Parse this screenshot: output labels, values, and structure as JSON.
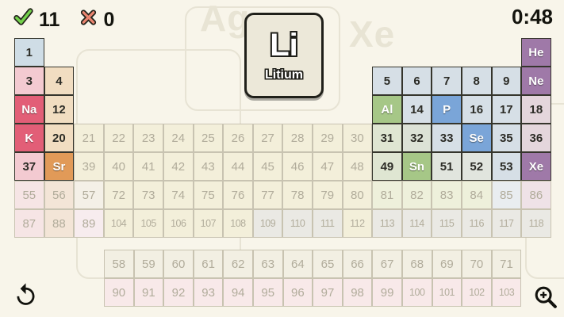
{
  "hud": {
    "correct_count": "11",
    "wrong_count": "0",
    "timer": "0:48",
    "correct_icon": "checkmark",
    "wrong_icon": "cross-x"
  },
  "card": {
    "symbol": "Li",
    "name": "Litium"
  },
  "watermarks": [
    "Ag",
    "Xe"
  ],
  "controls": {
    "undo_icon": "undo-arrow",
    "zoom_icon": "magnifier-plus"
  },
  "colors": {
    "background": "#f8f5ea",
    "active_border": "#35352c",
    "faded_border": "#c8c3b1",
    "categories": {
      "h": "#cfdde6",
      "pink": "#f3cad1",
      "tan": "#f1ddc1",
      "rose": "#e25e77",
      "orange": "#e19a58",
      "lblue": "#d6dfe6",
      "lgreen": "#dfe6d2",
      "lgreen2": "#dce2d6",
      "mist": "#e1e5de",
      "green": "#a6c787",
      "blue": "#7aa5d8",
      "purple": "#9f79a8",
      "mauve": "#e4d6dc",
      "f-cream": "#f3efda",
      "f-pink": "#f6e5e5",
      "f-tan": "#f3e5d7",
      "f-white": "#f4f0e7",
      "f-pinkw": "#f7ecee",
      "f-gray": "#eae9e4",
      "f-blue": "#e9edf0",
      "f-mauve": "#efe2e7",
      "f-green": "#eef0db",
      "f-lan": "#f2efe3",
      "f-act": "#f8e9e9"
    }
  },
  "table": {
    "rows": [
      {
        "period": 1,
        "cells": [
          {
            "c": 1,
            "t": "1",
            "k": "h"
          },
          {
            "c": 18,
            "t": "He",
            "k": "purple"
          }
        ]
      },
      {
        "period": 2,
        "cells": [
          {
            "c": 1,
            "t": "3",
            "k": "pink"
          },
          {
            "c": 2,
            "t": "4",
            "k": "tan"
          },
          {
            "c": 13,
            "t": "5",
            "k": "lblue"
          },
          {
            "c": 14,
            "t": "6",
            "k": "lblue"
          },
          {
            "c": 15,
            "t": "7",
            "k": "lblue"
          },
          {
            "c": 16,
            "t": "8",
            "k": "lblue"
          },
          {
            "c": 17,
            "t": "9",
            "k": "lblue"
          },
          {
            "c": 18,
            "t": "Ne",
            "k": "purple"
          }
        ]
      },
      {
        "period": 3,
        "cells": [
          {
            "c": 1,
            "t": "Na",
            "k": "rose"
          },
          {
            "c": 2,
            "t": "12",
            "k": "tan"
          },
          {
            "c": 13,
            "t": "Al",
            "k": "green"
          },
          {
            "c": 14,
            "t": "14",
            "k": "lblue"
          },
          {
            "c": 15,
            "t": "P",
            "k": "blue"
          },
          {
            "c": 16,
            "t": "16",
            "k": "lblue"
          },
          {
            "c": 17,
            "t": "17",
            "k": "lblue"
          },
          {
            "c": 18,
            "t": "18",
            "k": "mauve"
          }
        ]
      },
      {
        "period": 4,
        "cells": [
          {
            "c": 1,
            "t": "K",
            "k": "rose"
          },
          {
            "c": 2,
            "t": "20",
            "k": "tan"
          },
          {
            "c": 3,
            "t": "21",
            "k": "f-cream"
          },
          {
            "c": 4,
            "t": "22",
            "k": "f-cream"
          },
          {
            "c": 5,
            "t": "23",
            "k": "f-cream"
          },
          {
            "c": 6,
            "t": "24",
            "k": "f-cream"
          },
          {
            "c": 7,
            "t": "25",
            "k": "f-cream"
          },
          {
            "c": 8,
            "t": "26",
            "k": "f-cream"
          },
          {
            "c": 9,
            "t": "27",
            "k": "f-cream"
          },
          {
            "c": 10,
            "t": "28",
            "k": "f-cream"
          },
          {
            "c": 11,
            "t": "29",
            "k": "f-cream"
          },
          {
            "c": 12,
            "t": "30",
            "k": "f-cream"
          },
          {
            "c": 13,
            "t": "31",
            "k": "lgreen"
          },
          {
            "c": 14,
            "t": "32",
            "k": "lgreen2"
          },
          {
            "c": 15,
            "t": "33",
            "k": "lblue"
          },
          {
            "c": 16,
            "t": "Se",
            "k": "blue"
          },
          {
            "c": 17,
            "t": "35",
            "k": "lblue"
          },
          {
            "c": 18,
            "t": "36",
            "k": "mauve"
          }
        ]
      },
      {
        "period": 5,
        "cells": [
          {
            "c": 1,
            "t": "37",
            "k": "pink"
          },
          {
            "c": 2,
            "t": "Sr",
            "k": "orange"
          },
          {
            "c": 3,
            "t": "39",
            "k": "f-cream"
          },
          {
            "c": 4,
            "t": "40",
            "k": "f-cream"
          },
          {
            "c": 5,
            "t": "41",
            "k": "f-cream"
          },
          {
            "c": 6,
            "t": "42",
            "k": "f-cream"
          },
          {
            "c": 7,
            "t": "43",
            "k": "f-cream"
          },
          {
            "c": 8,
            "t": "44",
            "k": "f-cream"
          },
          {
            "c": 9,
            "t": "45",
            "k": "f-cream"
          },
          {
            "c": 10,
            "t": "46",
            "k": "f-cream"
          },
          {
            "c": 11,
            "t": "47",
            "k": "f-cream"
          },
          {
            "c": 12,
            "t": "48",
            "k": "f-cream"
          },
          {
            "c": 13,
            "t": "49",
            "k": "lgreen"
          },
          {
            "c": 14,
            "t": "Sn",
            "k": "green"
          },
          {
            "c": 15,
            "t": "51",
            "k": "mist"
          },
          {
            "c": 16,
            "t": "52",
            "k": "mist"
          },
          {
            "c": 17,
            "t": "53",
            "k": "lblue"
          },
          {
            "c": 18,
            "t": "Xe",
            "k": "purple"
          }
        ]
      },
      {
        "period": 6,
        "cells": [
          {
            "c": 1,
            "t": "55",
            "k": "f-pink"
          },
          {
            "c": 2,
            "t": "56",
            "k": "f-tan"
          },
          {
            "c": 3,
            "t": "57",
            "k": "f-white"
          },
          {
            "c": 4,
            "t": "72",
            "k": "f-cream"
          },
          {
            "c": 5,
            "t": "73",
            "k": "f-cream"
          },
          {
            "c": 6,
            "t": "74",
            "k": "f-cream"
          },
          {
            "c": 7,
            "t": "75",
            "k": "f-cream"
          },
          {
            "c": 8,
            "t": "76",
            "k": "f-cream"
          },
          {
            "c": 9,
            "t": "77",
            "k": "f-cream"
          },
          {
            "c": 10,
            "t": "78",
            "k": "f-cream"
          },
          {
            "c": 11,
            "t": "79",
            "k": "f-cream"
          },
          {
            "c": 12,
            "t": "80",
            "k": "f-cream"
          },
          {
            "c": 13,
            "t": "81",
            "k": "f-green"
          },
          {
            "c": 14,
            "t": "82",
            "k": "f-green"
          },
          {
            "c": 15,
            "t": "83",
            "k": "f-green"
          },
          {
            "c": 16,
            "t": "84",
            "k": "f-green"
          },
          {
            "c": 17,
            "t": "85",
            "k": "f-blue"
          },
          {
            "c": 18,
            "t": "86",
            "k": "f-mauve"
          }
        ]
      },
      {
        "period": 7,
        "cells": [
          {
            "c": 1,
            "t": "87",
            "k": "f-pink"
          },
          {
            "c": 2,
            "t": "88",
            "k": "f-tan"
          },
          {
            "c": 3,
            "t": "89",
            "k": "f-pinkw"
          },
          {
            "c": 4,
            "t": "104",
            "k": "f-cream"
          },
          {
            "c": 5,
            "t": "105",
            "k": "f-cream"
          },
          {
            "c": 6,
            "t": "106",
            "k": "f-cream"
          },
          {
            "c": 7,
            "t": "107",
            "k": "f-cream"
          },
          {
            "c": 8,
            "t": "108",
            "k": "f-cream"
          },
          {
            "c": 9,
            "t": "109",
            "k": "f-gray"
          },
          {
            "c": 10,
            "t": "110",
            "k": "f-gray"
          },
          {
            "c": 11,
            "t": "111",
            "k": "f-gray"
          },
          {
            "c": 12,
            "t": "112",
            "k": "f-cream"
          },
          {
            "c": 13,
            "t": "113",
            "k": "f-gray"
          },
          {
            "c": 14,
            "t": "114",
            "k": "f-gray"
          },
          {
            "c": 15,
            "t": "115",
            "k": "f-gray"
          },
          {
            "c": 16,
            "t": "116",
            "k": "f-gray"
          },
          {
            "c": 17,
            "t": "117",
            "k": "f-gray"
          },
          {
            "c": 18,
            "t": "118",
            "k": "f-gray"
          }
        ]
      }
    ]
  },
  "fblock": {
    "rows": [
      {
        "cells": [
          {
            "c": 1,
            "t": "58",
            "k": "f-lan"
          },
          {
            "c": 2,
            "t": "59",
            "k": "f-lan"
          },
          {
            "c": 3,
            "t": "60",
            "k": "f-lan"
          },
          {
            "c": 4,
            "t": "61",
            "k": "f-lan"
          },
          {
            "c": 5,
            "t": "62",
            "k": "f-lan"
          },
          {
            "c": 6,
            "t": "63",
            "k": "f-lan"
          },
          {
            "c": 7,
            "t": "64",
            "k": "f-lan"
          },
          {
            "c": 8,
            "t": "65",
            "k": "f-lan"
          },
          {
            "c": 9,
            "t": "66",
            "k": "f-lan"
          },
          {
            "c": 10,
            "t": "67",
            "k": "f-lan"
          },
          {
            "c": 11,
            "t": "68",
            "k": "f-lan"
          },
          {
            "c": 12,
            "t": "69",
            "k": "f-lan"
          },
          {
            "c": 13,
            "t": "70",
            "k": "f-lan"
          },
          {
            "c": 14,
            "t": "71",
            "k": "f-lan"
          }
        ]
      },
      {
        "cells": [
          {
            "c": 1,
            "t": "90",
            "k": "f-act"
          },
          {
            "c": 2,
            "t": "91",
            "k": "f-act"
          },
          {
            "c": 3,
            "t": "92",
            "k": "f-act"
          },
          {
            "c": 4,
            "t": "93",
            "k": "f-act"
          },
          {
            "c": 5,
            "t": "94",
            "k": "f-act"
          },
          {
            "c": 6,
            "t": "95",
            "k": "f-act"
          },
          {
            "c": 7,
            "t": "96",
            "k": "f-act"
          },
          {
            "c": 8,
            "t": "97",
            "k": "f-act"
          },
          {
            "c": 9,
            "t": "98",
            "k": "f-act"
          },
          {
            "c": 10,
            "t": "99",
            "k": "f-act"
          },
          {
            "c": 11,
            "t": "100",
            "k": "f-act"
          },
          {
            "c": 12,
            "t": "101",
            "k": "f-act"
          },
          {
            "c": 13,
            "t": "102",
            "k": "f-act"
          },
          {
            "c": 14,
            "t": "103",
            "k": "f-act"
          }
        ]
      }
    ]
  }
}
